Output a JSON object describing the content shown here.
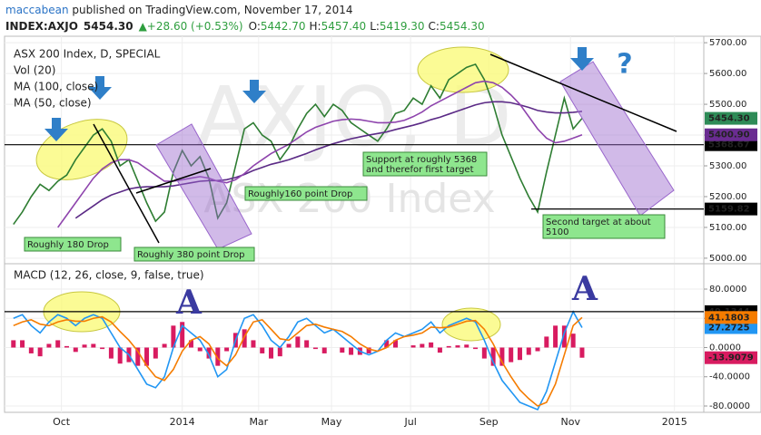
{
  "header": {
    "author": "maccabean",
    "published": " published on TradingView.com, November 17, 2014",
    "symbol": "INDEX:AXJO",
    "price": "5454.30",
    "change": "▲+28.60 (+0.53%)",
    "ohlc": [
      {
        "label": "O:",
        "value": "5442.70"
      },
      {
        "label": "H:",
        "value": "5457.40"
      },
      {
        "label": "L:",
        "value": "5419.30"
      },
      {
        "label": "C:",
        "value": "5454.30"
      }
    ]
  },
  "chart_data": [
    {
      "type": "line",
      "title": "ASX 200 Index, D, SPECIAL",
      "indicator": "Vol (20)",
      "watermark": [
        "AXJO, D",
        "ASX 200 Index"
      ],
      "xlim": [
        -20,
        58.7
      ],
      "xticks": [
        {
          "value": -13.6,
          "label": "Oct"
        },
        {
          "value": 0,
          "label": "2014"
        },
        {
          "value": 8.6,
          "label": "Mar"
        },
        {
          "value": 16.8,
          "label": "May"
        },
        {
          "value": 25.7,
          "label": "Jul"
        },
        {
          "value": 34.5,
          "label": "Sep"
        },
        {
          "value": 43.7,
          "label": "Nov"
        },
        {
          "value": 55.4,
          "label": "2015"
        }
      ],
      "ylim": [
        4985,
        5721
      ],
      "yticks": [
        {
          "value": 5000,
          "label": "5000.00"
        },
        {
          "value": 5100,
          "label": "5100.00"
        },
        {
          "value": 5200,
          "label": "5200.00"
        },
        {
          "value": 5300,
          "label": "5300.00"
        },
        {
          "value": 5400,
          "label": "5400.00"
        },
        {
          "value": 5500,
          "label": "5500.00"
        },
        {
          "value": 5600,
          "label": "5600.00"
        },
        {
          "value": 5700,
          "label": "5700.00"
        }
      ],
      "grid": true,
      "x": [
        -19,
        -18,
        -17,
        -16,
        -15,
        -14,
        -13,
        -12,
        -11,
        -10,
        -9,
        -8,
        -7,
        -6,
        -5,
        -4,
        -3,
        -2,
        -1,
        0,
        1,
        2,
        3,
        4,
        5,
        6,
        7,
        8,
        9,
        10,
        11,
        12,
        13,
        14,
        15,
        16,
        17,
        18,
        19,
        20,
        21,
        22,
        23,
        24,
        25,
        26,
        27,
        28,
        29,
        30,
        31,
        32,
        33,
        34,
        35,
        36,
        37,
        38,
        39,
        40,
        41,
        42,
        43,
        44,
        45
      ],
      "series": [
        {
          "color": "#2e7d32",
          "values": [
            5110,
            5150,
            5200,
            5240,
            5220,
            5250,
            5270,
            5320,
            5360,
            5400,
            5420,
            5380,
            5300,
            5320,
            5250,
            5180,
            5120,
            5150,
            5280,
            5350,
            5300,
            5330,
            5260,
            5130,
            5180,
            5300,
            5420,
            5440,
            5400,
            5380,
            5320,
            5360,
            5420,
            5470,
            5500,
            5460,
            5500,
            5480,
            5440,
            5420,
            5400,
            5380,
            5420,
            5470,
            5480,
            5520,
            5500,
            5560,
            5520,
            5580,
            5600,
            5620,
            5630,
            5580,
            5500,
            5400,
            5330,
            5260,
            5200,
            5150,
            5280,
            5400,
            5520,
            5420,
            5454.3
          ]
        },
        {
          "name": "MA (100, close)",
          "color": "#5b2a86",
          "values": [
            null,
            null,
            null,
            null,
            null,
            null,
            null,
            5130,
            5150,
            5170,
            5190,
            5205,
            5215,
            5225,
            5230,
            5232,
            5232,
            5232,
            5235,
            5240,
            5245,
            5250,
            5252,
            5252,
            5255,
            5262,
            5272,
            5285,
            5295,
            5305,
            5312,
            5320,
            5330,
            5340,
            5352,
            5362,
            5372,
            5380,
            5388,
            5394,
            5400,
            5405,
            5410,
            5418,
            5425,
            5432,
            5440,
            5450,
            5458,
            5468,
            5478,
            5488,
            5498,
            5505,
            5508,
            5508,
            5505,
            5498,
            5490,
            5480,
            5475,
            5472,
            5472,
            5474,
            5477
          ]
        },
        {
          "name": "MA (50, close)",
          "color": "#8e44ad",
          "values": [
            null,
            null,
            null,
            null,
            null,
            5100,
            5140,
            5180,
            5220,
            5260,
            5290,
            5310,
            5320,
            5320,
            5310,
            5290,
            5270,
            5250,
            5250,
            5255,
            5260,
            5265,
            5260,
            5250,
            5245,
            5255,
            5275,
            5300,
            5320,
            5340,
            5355,
            5370,
            5390,
            5410,
            5425,
            5435,
            5445,
            5450,
            5452,
            5450,
            5445,
            5440,
            5440,
            5442,
            5448,
            5460,
            5475,
            5495,
            5510,
            5525,
            5540,
            5555,
            5570,
            5575,
            5570,
            5555,
            5530,
            5500,
            5460,
            5420,
            5390,
            5375,
            5380,
            5390,
            5400.9
          ]
        }
      ],
      "levels": [
        5368.67,
        5159.82
      ],
      "price_labels": [
        {
          "value": 5454.3,
          "label": "5454.30",
          "color": "#2e8b57"
        },
        {
          "value": 5400.9,
          "label": "5400.90",
          "color": "#6a2c91"
        }
      ],
      "annotations": [
        [
          "Roughly 180 Drop"
        ],
        [
          "Roughly 380 point Drop"
        ],
        [
          "Roughly160 point Drop"
        ],
        [
          "Support at roughly 5368",
          "and therefor first target"
        ],
        [
          "Second target at about",
          "5100"
        ]
      ],
      "question": "?"
    },
    {
      "type": "line",
      "title": "MACD (12, 26, close, 9, false, true)",
      "ylim": [
        -88.7,
        113.5
      ],
      "yticks": [
        {
          "value": 80,
          "label": "80.0000"
        },
        {
          "value": 40,
          "label": "40.0000"
        },
        {
          "value": 0,
          "label": "0.0000"
        },
        {
          "value": -40,
          "label": "-40.0000"
        },
        {
          "value": -80,
          "label": "-80.0000"
        }
      ],
      "levels": [
        49.1344
      ],
      "annotations": [
        "A",
        "A"
      ],
      "series": [
        {
          "type": "bar",
          "color": "#d81b60",
          "values": [
            10,
            10,
            -8,
            -12,
            5,
            10,
            2,
            -6,
            4,
            5,
            -2,
            -15,
            -22,
            -20,
            -25,
            -25,
            -15,
            5,
            30,
            35,
            10,
            -5,
            -15,
            -25,
            -5,
            20,
            25,
            10,
            -8,
            -15,
            -12,
            5,
            15,
            10,
            -2,
            -8,
            0,
            -7,
            -10,
            -10,
            -8,
            0,
            10,
            10,
            0,
            3,
            5,
            7,
            -7,
            2,
            3,
            4,
            -2,
            -15,
            -25,
            -25,
            -20,
            -17,
            -10,
            -5,
            15,
            30,
            30,
            19,
            -13.9079
          ]
        },
        {
          "color": "#2196f3",
          "values": [
            40,
            45,
            30,
            20,
            35,
            45,
            40,
            30,
            40,
            45,
            40,
            20,
            0,
            -10,
            -30,
            -50,
            -55,
            -40,
            0,
            30,
            20,
            10,
            -10,
            -40,
            -30,
            10,
            40,
            45,
            30,
            10,
            0,
            15,
            35,
            40,
            30,
            20,
            25,
            15,
            5,
            -5,
            -10,
            -5,
            10,
            20,
            15,
            20,
            25,
            35,
            20,
            30,
            35,
            40,
            35,
            10,
            -20,
            -45,
            -60,
            -75,
            -80,
            -85,
            -60,
            -20,
            20,
            49,
            27.2725
          ]
        },
        {
          "color": "#f57c00",
          "values": [
            30,
            35,
            38,
            32,
            30,
            35,
            38,
            36,
            36,
            40,
            42,
            35,
            22,
            10,
            -5,
            -25,
            -40,
            -45,
            -30,
            -5,
            10,
            15,
            5,
            -15,
            -25,
            -10,
            15,
            35,
            38,
            25,
            12,
            10,
            20,
            30,
            32,
            28,
            25,
            22,
            15,
            5,
            -2,
            -5,
            0,
            10,
            15,
            17,
            20,
            28,
            27,
            28,
            32,
            36,
            37,
            25,
            5,
            -20,
            -40,
            -58,
            -70,
            -80,
            -75,
            -50,
            -10,
            30,
            41.1803
          ]
        }
      ]
    }
  ]
}
